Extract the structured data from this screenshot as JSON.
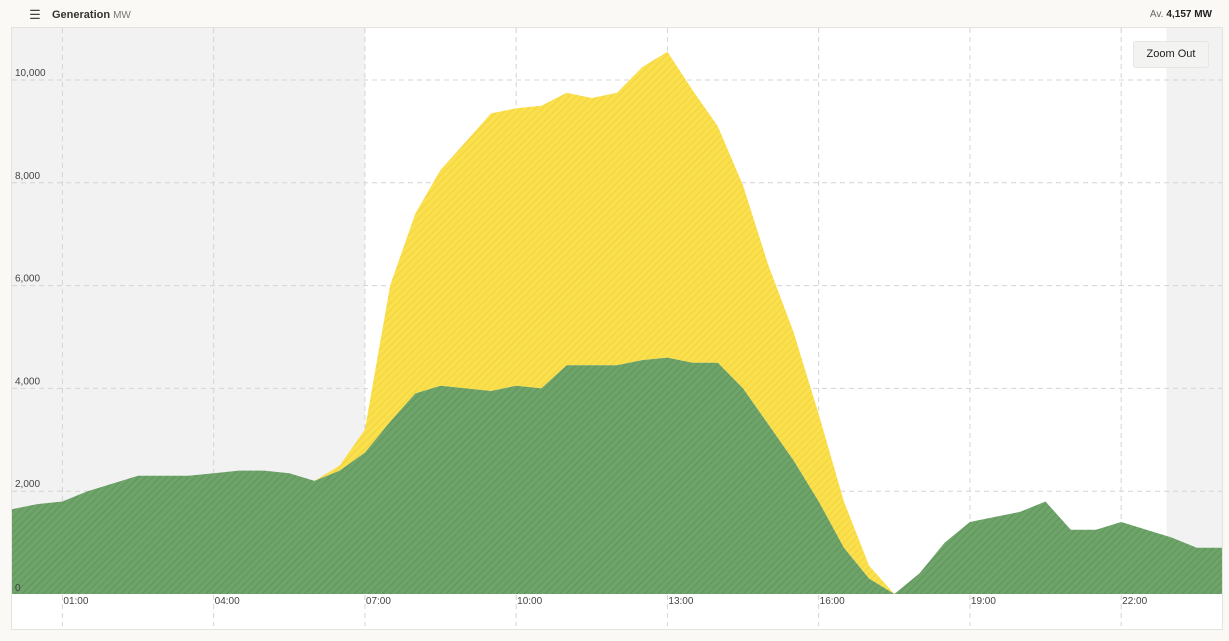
{
  "header": {
    "menu_icon": "hamburger-menu-icon",
    "title": "Generation",
    "unit": "MW",
    "average_label": "Av.",
    "average_value": "4,157 MW"
  },
  "controls": {
    "zoom_out_label": "Zoom Out"
  },
  "colors": {
    "solar": "#fbe04e",
    "wind": "#6ea36a",
    "night_shade": "#f2f2f2"
  },
  "chart_data": {
    "type": "area",
    "stacked": true,
    "y_ticks": [
      "0",
      "2,000",
      "4,000",
      "6,000",
      "8,000",
      "10,000"
    ],
    "ylim": [
      0,
      11000
    ],
    "x_ticks": [
      "01:00",
      "04:00",
      "07:00",
      "10:00",
      "13:00",
      "16:00",
      "19:00",
      "22:00"
    ],
    "x_hours": [
      0,
      0.5,
      1,
      1.5,
      2,
      2.5,
      3,
      3.5,
      4,
      4.5,
      5,
      5.5,
      6,
      6.5,
      7,
      7.5,
      8,
      8.5,
      9,
      9.5,
      10,
      10.5,
      11,
      11.5,
      12,
      12.5,
      13,
      13.5,
      14,
      14.5,
      15,
      15.5,
      16,
      16.5,
      17,
      17.5,
      18,
      18.5,
      19,
      19.5,
      20,
      20.5,
      21,
      21.5,
      22,
      22.5,
      23,
      23.5,
      24
    ],
    "shaded_hours": [
      [
        0,
        7
      ],
      [
        22.9,
        24
      ]
    ],
    "series": [
      {
        "values": [
          1650,
          1750,
          1800,
          2000,
          2150,
          2300,
          2300,
          2300,
          2350,
          2400,
          2400,
          2350,
          2200,
          2400,
          2750,
          3350,
          3900,
          4050,
          4000,
          3950,
          4050,
          4000,
          4450,
          4450,
          4450,
          4550,
          4600,
          4500,
          4500,
          4000,
          3300,
          2600,
          1800,
          900,
          300,
          0,
          400,
          1000,
          1400,
          1500,
          1600,
          1800,
          1250,
          1250,
          1400,
          1250,
          1100,
          900,
          900
        ]
      },
      {
        "values": [
          0,
          0,
          0,
          0,
          0,
          0,
          0,
          0,
          0,
          0,
          0,
          0,
          0,
          100,
          450,
          2650,
          3500,
          4200,
          4800,
          5400,
          5400,
          5500,
          5300,
          5200,
          5300,
          5700,
          5950,
          5300,
          4600,
          3950,
          3100,
          2500,
          1700,
          900,
          250,
          0,
          0,
          0,
          0,
          0,
          0,
          0,
          0,
          0,
          0,
          0,
          0,
          0,
          0
        ]
      }
    ]
  }
}
